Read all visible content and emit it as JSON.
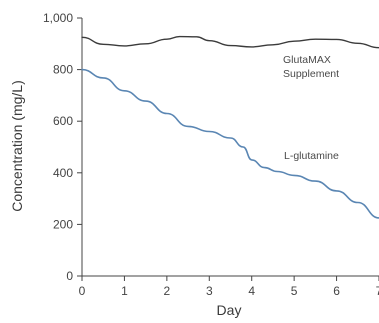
{
  "chart_data": {
    "type": "line",
    "title": "",
    "xlabel": "Day",
    "ylabel": "Concentration (mg/L)",
    "xlim": [
      0,
      7
    ],
    "ylim": [
      0,
      1000
    ],
    "grid": false,
    "x_ticks": [
      "0",
      "1",
      "2",
      "3",
      "4",
      "5",
      "6",
      "7"
    ],
    "y_ticks": [
      "0",
      "200",
      "400",
      "600",
      "800",
      "1,000"
    ],
    "series": [
      {
        "name_lines": [
          "GlutaMAX",
          "Supplement"
        ],
        "color": "#3b3b3b",
        "x": [
          0,
          0.5,
          1,
          1.5,
          2,
          2.3,
          2.7,
          3,
          3.5,
          4,
          4.5,
          5,
          5.5,
          6,
          6.5,
          7
        ],
        "y": [
          925,
          898,
          892,
          900,
          918,
          928,
          927,
          912,
          893,
          888,
          896,
          910,
          918,
          917,
          902,
          885
        ]
      },
      {
        "name_lines": [
          "L-glutamine"
        ],
        "color": "#5a86b3",
        "x": [
          0,
          0.5,
          1,
          1.5,
          2,
          2.5,
          3,
          3.5,
          3.8,
          4,
          4.3,
          4.6,
          5,
          5.5,
          6,
          6.5,
          7
        ],
        "y": [
          800,
          768,
          718,
          678,
          630,
          580,
          560,
          535,
          500,
          450,
          420,
          405,
          390,
          368,
          330,
          285,
          225
        ]
      }
    ]
  }
}
